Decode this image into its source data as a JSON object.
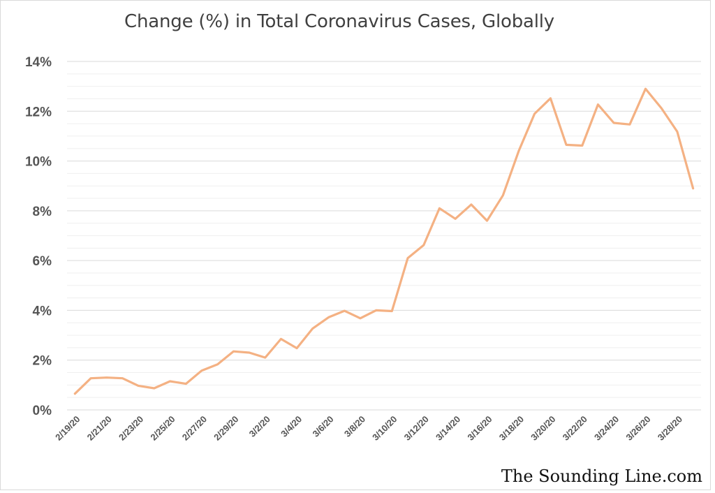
{
  "chart_data": {
    "type": "line",
    "title": "Change (%) in Total Coronavirus Cases, Globally",
    "xlabel": "",
    "ylabel": "",
    "ylim": [
      0,
      14
    ],
    "y_ticks": [
      "0%",
      "2%",
      "4%",
      "6%",
      "8%",
      "10%",
      "12%",
      "14%"
    ],
    "grid": true,
    "x": [
      "2/19/20",
      "2/20/20",
      "2/21/20",
      "2/22/20",
      "2/23/20",
      "2/24/20",
      "2/25/20",
      "2/26/20",
      "2/27/20",
      "2/28/20",
      "2/29/20",
      "3/1/20",
      "3/2/20",
      "3/3/20",
      "3/4/20",
      "3/5/20",
      "3/6/20",
      "3/7/20",
      "3/8/20",
      "3/9/20",
      "3/10/20",
      "3/11/20",
      "3/12/20",
      "3/13/20",
      "3/14/20",
      "3/15/20",
      "3/16/20",
      "3/17/20",
      "3/18/20",
      "3/19/20",
      "3/20/20",
      "3/21/20",
      "3/22/20",
      "3/23/20",
      "3/24/20",
      "3/25/20",
      "3/26/20",
      "3/27/20",
      "3/28/20",
      "3/29/20"
    ],
    "x_tick_labels": [
      "2/19/20",
      "2/21/20",
      "2/23/20",
      "2/25/20",
      "2/27/20",
      "2/29/20",
      "3/2/20",
      "3/4/20",
      "3/6/20",
      "3/8/20",
      "3/10/20",
      "3/12/20",
      "3/14/20",
      "3/16/20",
      "3/18/20",
      "3/20/20",
      "3/22/20",
      "3/24/20",
      "3/26/20",
      "3/28/20"
    ],
    "series": [
      {
        "color": "#f4b183",
        "values": [
          0.65,
          1.27,
          1.3,
          1.27,
          0.97,
          0.87,
          1.15,
          1.05,
          1.58,
          1.83,
          2.35,
          2.3,
          2.1,
          2.85,
          2.48,
          3.27,
          3.72,
          3.98,
          3.68,
          4.0,
          3.97,
          6.1,
          6.62,
          8.1,
          7.68,
          8.25,
          7.6,
          8.62,
          10.4,
          11.9,
          12.52,
          10.65,
          10.62,
          12.27,
          11.53,
          11.47,
          12.9,
          12.12,
          11.18,
          8.9
        ]
      }
    ]
  },
  "watermark": "The Sounding Line.com"
}
